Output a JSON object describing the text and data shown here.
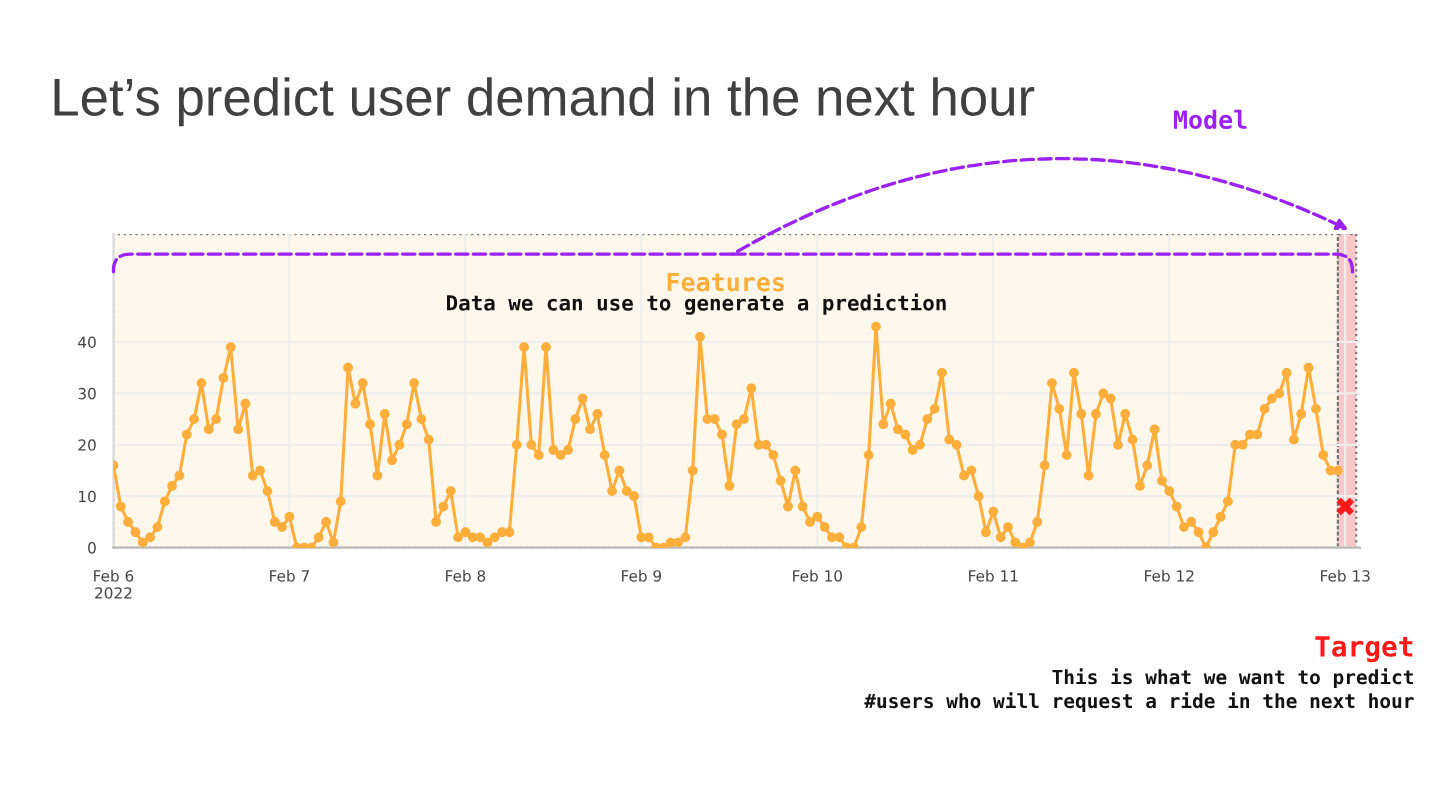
{
  "chart_data": {
    "type": "line",
    "title": "Let’s predict user demand in the next hour",
    "annotations": [
      "Data we can use to generate a prediction",
      "Model",
      "Target",
      "This is what we want to predict",
      "#users who will request a ride in the next hour"
    ],
    "series": [
      {
        "color": "#ffad3b",
        "marker": "circle",
        "x": [
          "2022-02-06T00:00",
          "2022-02-06T01:00",
          "2022-02-06T02:00",
          "2022-02-06T03:00",
          "2022-02-06T04:00",
          "2022-02-06T05:00",
          "2022-02-06T06:00",
          "2022-02-06T07:00",
          "2022-02-06T08:00",
          "2022-02-06T09:00",
          "2022-02-06T10:00",
          "2022-02-06T11:00",
          "2022-02-06T12:00",
          "2022-02-06T13:00",
          "2022-02-06T14:00",
          "2022-02-06T15:00",
          "2022-02-06T16:00",
          "2022-02-06T17:00",
          "2022-02-06T18:00",
          "2022-02-06T19:00",
          "2022-02-06T20:00",
          "2022-02-06T21:00",
          "2022-02-06T22:00",
          "2022-02-06T23:00",
          "2022-02-07T00:00",
          "2022-02-07T01:00",
          "2022-02-07T02:00",
          "2022-02-07T03:00",
          "2022-02-07T04:00",
          "2022-02-07T05:00",
          "2022-02-07T06:00",
          "2022-02-07T07:00",
          "2022-02-07T08:00",
          "2022-02-07T09:00",
          "2022-02-07T10:00",
          "2022-02-07T11:00",
          "2022-02-07T12:00",
          "2022-02-07T13:00",
          "2022-02-07T14:00",
          "2022-02-07T15:00",
          "2022-02-07T16:00",
          "2022-02-07T17:00",
          "2022-02-07T18:00",
          "2022-02-07T19:00",
          "2022-02-07T20:00",
          "2022-02-07T21:00",
          "2022-02-07T22:00",
          "2022-02-07T23:00",
          "2022-02-08T00:00",
          "2022-02-08T01:00",
          "2022-02-08T02:00",
          "2022-02-08T03:00",
          "2022-02-08T04:00",
          "2022-02-08T05:00",
          "2022-02-08T06:00",
          "2022-02-08T07:00",
          "2022-02-08T08:00",
          "2022-02-08T09:00",
          "2022-02-08T10:00",
          "2022-02-08T11:00",
          "2022-02-08T12:00",
          "2022-02-08T13:00",
          "2022-02-08T14:00",
          "2022-02-08T15:00",
          "2022-02-08T16:00",
          "2022-02-08T17:00",
          "2022-02-08T18:00",
          "2022-02-08T19:00",
          "2022-02-08T20:00",
          "2022-02-08T21:00",
          "2022-02-08T22:00",
          "2022-02-08T23:00",
          "2022-02-09T00:00",
          "2022-02-09T01:00",
          "2022-02-09T02:00",
          "2022-02-09T03:00",
          "2022-02-09T04:00",
          "2022-02-09T05:00",
          "2022-02-09T06:00",
          "2022-02-09T07:00",
          "2022-02-09T08:00",
          "2022-02-09T09:00",
          "2022-02-09T10:00",
          "2022-02-09T11:00",
          "2022-02-09T12:00",
          "2022-02-09T13:00",
          "2022-02-09T14:00",
          "2022-02-09T15:00",
          "2022-02-09T16:00",
          "2022-02-09T17:00",
          "2022-02-09T18:00",
          "2022-02-09T19:00",
          "2022-02-09T20:00",
          "2022-02-09T21:00",
          "2022-02-09T22:00",
          "2022-02-09T23:00",
          "2022-02-10T00:00",
          "2022-02-10T01:00",
          "2022-02-10T02:00",
          "2022-02-10T03:00",
          "2022-02-10T04:00",
          "2022-02-10T05:00",
          "2022-02-10T06:00",
          "2022-02-10T07:00",
          "2022-02-10T08:00",
          "2022-02-10T09:00",
          "2022-02-10T10:00",
          "2022-02-10T11:00",
          "2022-02-10T12:00",
          "2022-02-10T13:00",
          "2022-02-10T14:00",
          "2022-02-10T15:00",
          "2022-02-10T16:00",
          "2022-02-10T17:00",
          "2022-02-10T18:00",
          "2022-02-10T19:00",
          "2022-02-10T20:00",
          "2022-02-10T21:00",
          "2022-02-10T22:00",
          "2022-02-10T23:00",
          "2022-02-11T00:00",
          "2022-02-11T01:00",
          "2022-02-11T02:00",
          "2022-02-11T03:00",
          "2022-02-11T04:00",
          "2022-02-11T05:00",
          "2022-02-11T06:00",
          "2022-02-11T07:00",
          "2022-02-11T08:00",
          "2022-02-11T09:00",
          "2022-02-11T10:00",
          "2022-02-11T11:00",
          "2022-02-11T12:00",
          "2022-02-11T13:00",
          "2022-02-11T14:00",
          "2022-02-11T15:00",
          "2022-02-11T16:00",
          "2022-02-11T17:00",
          "2022-02-11T18:00",
          "2022-02-11T19:00",
          "2022-02-11T20:00",
          "2022-02-11T21:00",
          "2022-02-11T22:00",
          "2022-02-11T23:00",
          "2022-02-12T00:00",
          "2022-02-12T01:00",
          "2022-02-12T02:00",
          "2022-02-12T03:00",
          "2022-02-12T04:00",
          "2022-02-12T05:00",
          "2022-02-12T06:00",
          "2022-02-12T07:00",
          "2022-02-12T08:00",
          "2022-02-12T09:00",
          "2022-02-12T10:00",
          "2022-02-12T11:00",
          "2022-02-12T12:00",
          "2022-02-12T13:00",
          "2022-02-12T14:00",
          "2022-02-12T15:00",
          "2022-02-12T16:00",
          "2022-02-12T17:00",
          "2022-02-12T18:00",
          "2022-02-12T19:00",
          "2022-02-12T20:00",
          "2022-02-12T21:00",
          "2022-02-12T22:00",
          "2022-02-12T23:00"
        ],
        "values": [
          16,
          8,
          5,
          3,
          1,
          2,
          4,
          9,
          12,
          14,
          22,
          25,
          32,
          23,
          25,
          33,
          39,
          23,
          28,
          14,
          15,
          11,
          5,
          4,
          6,
          0,
          0,
          0,
          2,
          5,
          1,
          9,
          35,
          28,
          32,
          24,
          14,
          26,
          17,
          20,
          24,
          32,
          25,
          21,
          5,
          8,
          11,
          2,
          3,
          2,
          2,
          1,
          2,
          3,
          3,
          20,
          39,
          20,
          18,
          39,
          19,
          18,
          19,
          25,
          29,
          23,
          26,
          18,
          11,
          15,
          11,
          10,
          2,
          2,
          0,
          0,
          1,
          1,
          2,
          15,
          41,
          25,
          25,
          22,
          12,
          24,
          25,
          31,
          20,
          20,
          18,
          13,
          8,
          15,
          8,
          5,
          6,
          4,
          2,
          2,
          0,
          0,
          4,
          18,
          43,
          24,
          28,
          23,
          22,
          19,
          20,
          25,
          27,
          34,
          21,
          20,
          14,
          15,
          10,
          3,
          7,
          2,
          4,
          1,
          0,
          1,
          5,
          16,
          32,
          27,
          18,
          34,
          26,
          14,
          26,
          30,
          29,
          20,
          26,
          21,
          12,
          16,
          23,
          13,
          11,
          8,
          4,
          5,
          3,
          0,
          3,
          6,
          9,
          20,
          20,
          22,
          22,
          27,
          29,
          30,
          34,
          21,
          26,
          35,
          27,
          18,
          15,
          15
        ]
      },
      {
        "type": "scatter",
        "color": "#ff1a1a",
        "marker": "cross",
        "x": [
          "2022-02-13T00:00"
        ],
        "values": [
          8
        ]
      }
    ],
    "xlim": [
      "2022-02-06T00:00",
      "2022-02-13T02:00"
    ],
    "xticks": [
      {
        "value": "2022-02-06",
        "label": "Feb 6\n2022"
      },
      {
        "value": "2022-02-07",
        "label": "Feb 7"
      },
      {
        "value": "2022-02-08",
        "label": "Feb 8"
      },
      {
        "value": "2022-02-09",
        "label": "Feb 9"
      },
      {
        "value": "2022-02-10",
        "label": "Feb 10"
      },
      {
        "value": "2022-02-11",
        "label": "Feb 11"
      },
      {
        "value": "2022-02-12",
        "label": "Feb 12"
      },
      {
        "value": "2022-02-13",
        "label": "Feb 13"
      }
    ],
    "ylim": [
      0,
      61
    ],
    "yticks": [
      0,
      10,
      20,
      30,
      40
    ],
    "grid": true,
    "bands": [
      {
        "axis": "x",
        "from": "2022-02-06T00:00",
        "to": "2022-02-12T23:00",
        "label": "Features",
        "color": "#fef8ec"
      },
      {
        "axis": "x",
        "from": "2022-02-12T23:00",
        "to": "2022-02-13T01:30",
        "color": "#f9c6c9"
      }
    ]
  }
}
